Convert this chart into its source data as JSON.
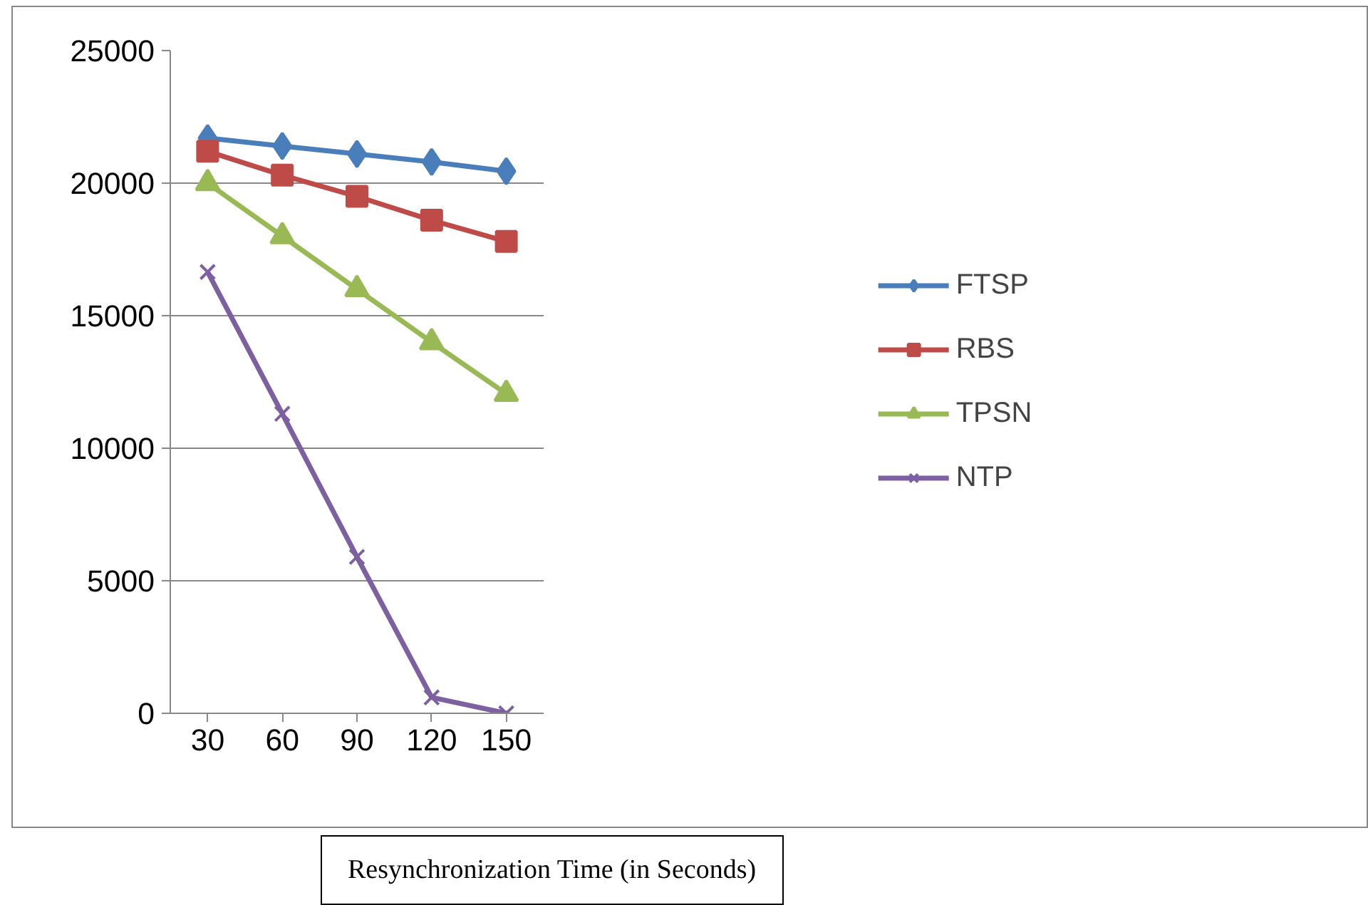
{
  "chart_data": {
    "type": "line",
    "xlabel": "Resynchronization Time (in Seconds)",
    "categories": [
      "30",
      "60",
      "90",
      "120",
      "150"
    ],
    "ylim": [
      0,
      25000
    ],
    "yticks": [
      0,
      5000,
      10000,
      15000,
      20000,
      25000
    ],
    "grid": "y",
    "legend": "right",
    "series": [
      {
        "name": "FTSP",
        "color": "#4a7ebb",
        "marker": "diamond",
        "values": [
          21700,
          21400,
          21100,
          20800,
          20450
        ]
      },
      {
        "name": "RBS",
        "color": "#be4b48",
        "marker": "square",
        "values": [
          21200,
          20300,
          19500,
          18600,
          17800
        ]
      },
      {
        "name": "TPSN",
        "color": "#98b954",
        "marker": "triangle",
        "values": [
          20000,
          18000,
          16000,
          14000,
          12050
        ]
      },
      {
        "name": "NTP",
        "color": "#7d60a0",
        "marker": "x",
        "values": [
          16650,
          11300,
          5900,
          600,
          0
        ]
      }
    ]
  }
}
